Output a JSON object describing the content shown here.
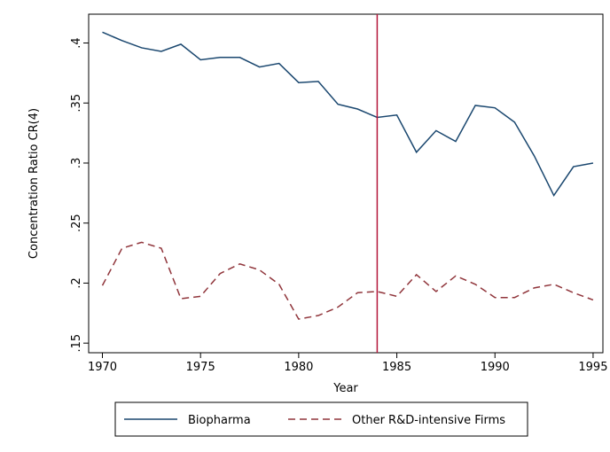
{
  "chart_data": {
    "type": "line",
    "x": [
      1970,
      1971,
      1972,
      1973,
      1974,
      1975,
      1976,
      1977,
      1978,
      1979,
      1980,
      1981,
      1982,
      1983,
      1984,
      1985,
      1986,
      1987,
      1988,
      1989,
      1990,
      1991,
      1992,
      1993,
      1994,
      1995
    ],
    "series": [
      {
        "name": "Biopharma",
        "color": "#1a476f",
        "line_style": "solid",
        "values": [
          0.409,
          0.402,
          0.396,
          0.393,
          0.399,
          0.386,
          0.388,
          0.388,
          0.38,
          0.383,
          0.367,
          0.368,
          0.349,
          0.345,
          0.338,
          0.34,
          0.309,
          0.327,
          0.318,
          0.348,
          0.346,
          0.334,
          0.306,
          0.273,
          0.297,
          0.3
        ]
      },
      {
        "name": "Other R&D-intensive Firms",
        "color": "#90353b",
        "line_style": "dashed",
        "values": [
          0.198,
          0.229,
          0.234,
          0.229,
          0.187,
          0.189,
          0.208,
          0.216,
          0.211,
          0.199,
          0.17,
          0.173,
          0.18,
          0.192,
          0.193,
          0.189,
          0.207,
          0.193,
          0.206,
          0.199,
          0.188,
          0.188,
          0.196,
          0.199,
          0.192,
          0.186
        ]
      }
    ],
    "xlabel": "Year",
    "ylabel": "Concentration Ratio CR(4)",
    "xlim": [
      1969.3,
      1995.5
    ],
    "ylim": [
      0.142,
      0.424
    ],
    "xticks": [
      1970,
      1975,
      1980,
      1985,
      1990,
      1995
    ],
    "yticks": [
      {
        "value": 0.15,
        "label": ".15"
      },
      {
        "value": 0.2,
        "label": ".2"
      },
      {
        "value": 0.25,
        "label": ".25"
      },
      {
        "value": 0.3,
        "label": ".3"
      },
      {
        "value": 0.35,
        "label": ".35"
      },
      {
        "value": 0.4,
        "label": ".4"
      }
    ],
    "vline": {
      "x": 1984,
      "color": "#b5163a"
    },
    "grid": false,
    "legend": "bottom"
  }
}
